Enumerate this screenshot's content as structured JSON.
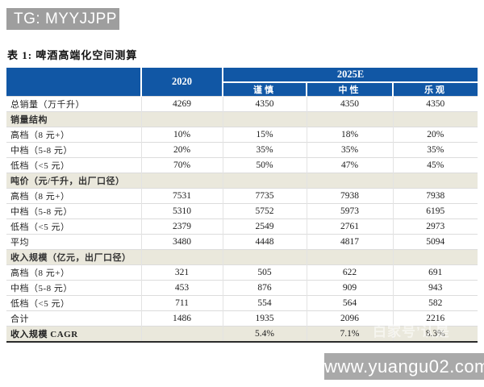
{
  "badge": {
    "text": "TG: MYYJJPP"
  },
  "title": "表 1: 啤酒高端化空间测算",
  "table": {
    "header": {
      "year": "2020",
      "group": "2025E",
      "scenarios": [
        "谨慎",
        "中性",
        "乐观"
      ]
    },
    "rows": [
      {
        "type": "data",
        "label": "总销量（万千升）",
        "values": [
          "4269",
          "4350",
          "4350",
          "4350"
        ]
      },
      {
        "type": "section",
        "label": "销量结构",
        "values": [
          "",
          "",
          "",
          ""
        ]
      },
      {
        "type": "data",
        "label": "高档（8 元+）",
        "values": [
          "10%",
          "15%",
          "18%",
          "20%"
        ]
      },
      {
        "type": "data",
        "label": "中档（5-8 元）",
        "values": [
          "20%",
          "35%",
          "35%",
          "35%"
        ]
      },
      {
        "type": "data",
        "label": "低档（<5 元）",
        "values": [
          "70%",
          "50%",
          "47%",
          "45%"
        ]
      },
      {
        "type": "section",
        "label": "吨价（元/千升，出厂口径）",
        "values": [
          "",
          "",
          "",
          ""
        ]
      },
      {
        "type": "data",
        "label": "高档（8 元+）",
        "values": [
          "7531",
          "7735",
          "7938",
          "7938"
        ]
      },
      {
        "type": "data",
        "label": "中档（5-8 元）",
        "values": [
          "5310",
          "5752",
          "5973",
          "6195"
        ]
      },
      {
        "type": "data",
        "label": "低档（<5 元）",
        "values": [
          "2379",
          "2549",
          "2761",
          "2973"
        ]
      },
      {
        "type": "data",
        "label": "平均",
        "values": [
          "3480",
          "4448",
          "4817",
          "5094"
        ]
      },
      {
        "type": "section",
        "label": "收入规模（亿元，出厂口径）",
        "values": [
          "",
          "",
          "",
          ""
        ]
      },
      {
        "type": "data",
        "label": "高档（8 元+）",
        "values": [
          "321",
          "505",
          "622",
          "691"
        ]
      },
      {
        "type": "data",
        "label": "中档（5-8 元）",
        "values": [
          "453",
          "876",
          "909",
          "943"
        ]
      },
      {
        "type": "data",
        "label": "低档（<5 元）",
        "values": [
          "711",
          "554",
          "564",
          "582"
        ]
      },
      {
        "type": "data",
        "label": "合计",
        "values": [
          "1486",
          "1935",
          "2096",
          "2216"
        ]
      },
      {
        "type": "cagr",
        "label": "收入规模 CAGR",
        "values": [
          "",
          "5.4%",
          "7.1%",
          "8.3%"
        ]
      }
    ]
  },
  "overlays": {
    "faint_text": "白家号’认是",
    "site": "www.yuangu02.com"
  },
  "colors": {
    "header_blue": "#1157a5",
    "section_beige": "#eae8dc",
    "badge_gray": "#9e9e9e",
    "watermark_gray": "#a9a9a9"
  }
}
